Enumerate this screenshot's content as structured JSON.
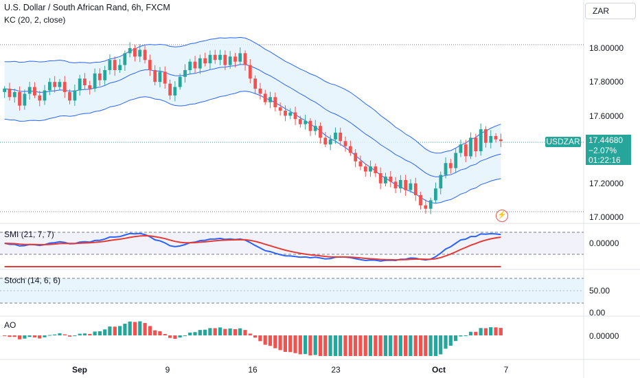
{
  "header": {
    "title": "U.S. Dollar / South African Rand, 6h, FXCM",
    "indicator": "KC (20, 2, close)",
    "currency": "ZAR"
  },
  "price_axis": [
    "18.00000",
    "17.80000",
    "17.60000",
    "17.20000",
    "17.00000"
  ],
  "price_tag": {
    "symbol": "USDZAR",
    "price": "17.44680",
    "change": "−2.07%",
    "countdown": "01:22:16"
  },
  "panes": {
    "smi": {
      "label": "SMI (21, 7, 7)",
      "axis": "0.00000"
    },
    "stoch": {
      "label": "Stoch (14, 6, 6)",
      "axis_top": "50.00",
      "axis_bottom": "0.00"
    },
    "ao": {
      "label": "AO",
      "axis": "0.00000"
    }
  },
  "x_axis": [
    {
      "label": "Sep",
      "bold": true
    },
    {
      "label": "9",
      "bold": false
    },
    {
      "label": "16",
      "bold": false
    },
    {
      "label": "23",
      "bold": false
    },
    {
      "label": "Oct",
      "bold": true
    },
    {
      "label": "7",
      "bold": false
    }
  ],
  "colors": {
    "up": "#26a69a",
    "down": "#ef5350",
    "band": "#2962ff",
    "band_fill": "#e3f2fd",
    "signal": "#e53935",
    "line_blue": "#2962ff"
  },
  "chart_data": {
    "type": "candlestick",
    "symbol": "USDZAR",
    "timeframe": "6h",
    "ylim": [
      16.95,
      18.25
    ],
    "closes": [
      17.76,
      17.71,
      17.74,
      17.66,
      17.73,
      17.77,
      17.72,
      17.69,
      17.75,
      17.8,
      17.77,
      17.8,
      17.74,
      17.69,
      17.75,
      17.82,
      17.78,
      17.76,
      17.85,
      17.81,
      17.87,
      17.93,
      17.87,
      17.9,
      17.97,
      18.0,
      17.95,
      17.99,
      17.93,
      17.87,
      17.8,
      17.86,
      17.79,
      17.72,
      17.77,
      17.83,
      17.87,
      17.92,
      17.88,
      17.94,
      17.91,
      17.96,
      17.93,
      17.96,
      17.9,
      17.95,
      17.92,
      17.97,
      17.9,
      17.82,
      17.76,
      17.73,
      17.68,
      17.71,
      17.65,
      17.63,
      17.6,
      17.62,
      17.58,
      17.55,
      17.57,
      17.51,
      17.54,
      17.47,
      17.43,
      17.46,
      17.5,
      17.45,
      17.42,
      17.38,
      17.33,
      17.3,
      17.27,
      17.3,
      17.26,
      17.2,
      17.24,
      17.21,
      17.17,
      17.22,
      17.16,
      17.2,
      17.13,
      17.07,
      17.05,
      17.1,
      17.17,
      17.25,
      17.32,
      17.29,
      17.38,
      17.43,
      17.36,
      17.47,
      17.39,
      17.52,
      17.44,
      17.48,
      17.46,
      17.45
    ]
  }
}
